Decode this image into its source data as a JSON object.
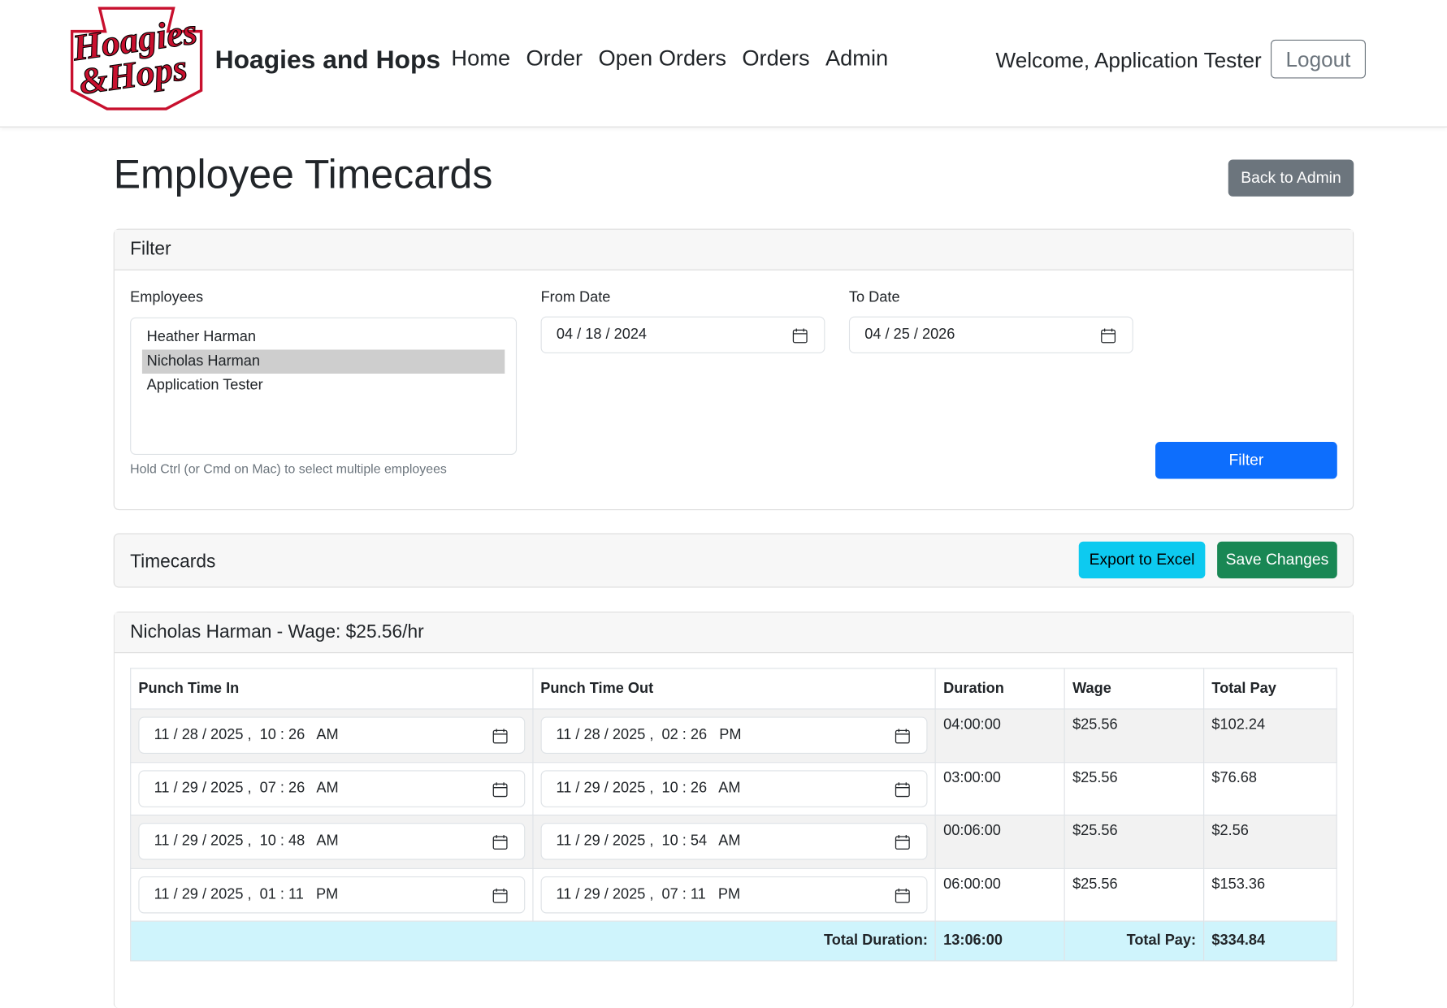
{
  "header": {
    "logo_lines": [
      "Hoagies",
      "&Hops"
    ],
    "brand": "Hoagies and Hops",
    "nav": [
      "Home",
      "Order",
      "Open Orders",
      "Orders",
      "Admin"
    ],
    "welcome": "Welcome, Application Tester",
    "logout": "Logout"
  },
  "page": {
    "title": "Employee Timecards",
    "back_button": "Back to Admin"
  },
  "filter": {
    "heading": "Filter",
    "employees_label": "Employees",
    "employees": [
      {
        "name": "Heather Harman",
        "selected": false
      },
      {
        "name": "Nicholas Harman",
        "selected": true
      },
      {
        "name": "Application Tester",
        "selected": false
      }
    ],
    "help": "Hold Ctrl (or Cmd on Mac) to select multiple employees",
    "from_label": "From Date",
    "from_value": "04 / 18 / 2024",
    "to_label": "To Date",
    "to_value": "04 / 25 / 2026",
    "button": "Filter"
  },
  "timecards": {
    "heading": "Timecards",
    "export_button": "Export to Excel",
    "save_button": "Save Changes"
  },
  "employee_section": {
    "heading": "Nicholas Harman - Wage: $25.56/hr",
    "columns": [
      "Punch Time In",
      "Punch Time Out",
      "Duration",
      "Wage",
      "Total Pay"
    ],
    "rows": [
      [
        "11 / 28 / 2025 ,  10 : 26   AM",
        "11 / 28 / 2025 ,  02 : 26   PM",
        "04:00:00",
        "$25.56",
        "$102.24"
      ],
      [
        "11 / 29 / 2025 ,  07 : 26   AM",
        "11 / 29 / 2025 ,  10 : 26   AM",
        "03:00:00",
        "$25.56",
        "$76.68"
      ],
      [
        "11 / 29 / 2025 ,  10 : 48   AM",
        "11 / 29 / 2025 ,  10 : 54   AM",
        "00:06:00",
        "$25.56",
        "$2.56"
      ],
      [
        "11 / 29 / 2025 ,  01 : 11   PM",
        "11 / 29 / 2025 ,  07 : 11   PM",
        "06:00:00",
        "$25.56",
        "$153.36"
      ]
    ],
    "footer": {
      "total_duration_label": "Total Duration:",
      "total_duration": "13:06:00",
      "total_pay_label": "Total Pay:",
      "total_pay": "$334.84"
    }
  }
}
